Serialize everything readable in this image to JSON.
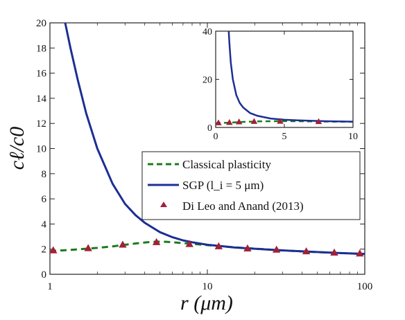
{
  "chart_data": [
    {
      "type": "line",
      "xlabel": "r (μm)",
      "ylabel": "cℓ/c0",
      "xscale": "log",
      "xlim": [
        1,
        100
      ],
      "ylim": [
        0,
        20
      ],
      "xticks": [
        "1",
        "10",
        "100"
      ],
      "yticks": [
        "0",
        "2",
        "4",
        "6",
        "8",
        "10",
        "12",
        "14",
        "16",
        "18",
        "20"
      ],
      "legend_position": "lower-right",
      "grid": false,
      "series": [
        {
          "name": "Classical plasticity",
          "style": "dashed",
          "color": "#1a7a1a",
          "x": [
            1.0,
            1.2,
            1.5,
            2.0,
            2.5,
            3.0,
            3.5,
            4.0,
            4.5,
            5.0,
            5.5,
            6.0,
            7.0,
            8.0,
            10.0,
            12.0,
            15.0,
            20.0,
            30.0,
            50.0,
            70.0,
            100.0
          ],
          "y": [
            1.85,
            1.9,
            1.98,
            2.1,
            2.22,
            2.35,
            2.45,
            2.53,
            2.58,
            2.6,
            2.58,
            2.55,
            2.48,
            2.42,
            2.32,
            2.24,
            2.14,
            2.04,
            1.9,
            1.76,
            1.69,
            1.62
          ]
        },
        {
          "name": "SGP (l_i = 5 μm)",
          "style": "solid",
          "color": "#1c2e94",
          "x": [
            1.25,
            1.35,
            1.5,
            1.7,
            2.0,
            2.5,
            3.0,
            3.5,
            4.0,
            5.0,
            6.0,
            7.0,
            8.0,
            10.0,
            12.0,
            15.0,
            20.0,
            30.0,
            50.0,
            70.0,
            100.0
          ],
          "y": [
            20.0,
            18.0,
            15.5,
            12.8,
            10.0,
            7.2,
            5.6,
            4.7,
            4.1,
            3.35,
            2.95,
            2.7,
            2.55,
            2.35,
            2.25,
            2.13,
            2.03,
            1.9,
            1.77,
            1.69,
            1.62
          ]
        },
        {
          "name": "Di Leo and Anand (2013)",
          "style": "markers",
          "marker": "triangle",
          "color": "#a3203a",
          "x": [
            1.05,
            1.75,
            2.9,
            4.75,
            7.7,
            11.8,
            18.0,
            27.5,
            42.5,
            64.0,
            93.0
          ],
          "y": [
            1.9,
            2.07,
            2.35,
            2.55,
            2.4,
            2.22,
            2.05,
            1.95,
            1.82,
            1.72,
            1.65
          ]
        }
      ]
    },
    {
      "type": "line",
      "position": "inset-top-right",
      "xscale": "linear",
      "xlim": [
        0,
        10
      ],
      "ylim": [
        0,
        40
      ],
      "xticks": [
        "0",
        "5",
        "10"
      ],
      "yticks": [
        "0",
        "20",
        "40"
      ],
      "series": [
        {
          "name": "Classical plasticity",
          "style": "dashed",
          "color": "#1a7a1a",
          "x": [
            0,
            0.5,
            1,
            1.5,
            2,
            3,
            4,
            5,
            6,
            7,
            8,
            9,
            10
          ],
          "y": [
            1.8,
            1.9,
            2.0,
            2.15,
            2.3,
            2.5,
            2.6,
            2.62,
            2.58,
            2.5,
            2.45,
            2.4,
            2.35
          ]
        },
        {
          "name": "SGP (l_i = 5 μm)",
          "style": "solid",
          "color": "#1c2e94",
          "x": [
            0.95,
            1.0,
            1.1,
            1.25,
            1.5,
            1.75,
            2.0,
            2.5,
            3.0,
            4.0,
            5.0,
            6.0,
            8.0,
            10.0
          ],
          "y": [
            40,
            35,
            27,
            20,
            13.5,
            10.2,
            8.3,
            6.0,
            4.9,
            3.7,
            3.2,
            2.95,
            2.6,
            2.4
          ]
        },
        {
          "name": "Di Leo and Anand (2013)",
          "style": "markers",
          "marker": "triangle",
          "color": "#a3203a",
          "x": [
            0.2,
            1.0,
            1.7,
            2.8,
            4.7,
            7.5
          ],
          "y": [
            1.9,
            2.05,
            2.3,
            2.5,
            2.55,
            2.4
          ]
        }
      ]
    }
  ]
}
